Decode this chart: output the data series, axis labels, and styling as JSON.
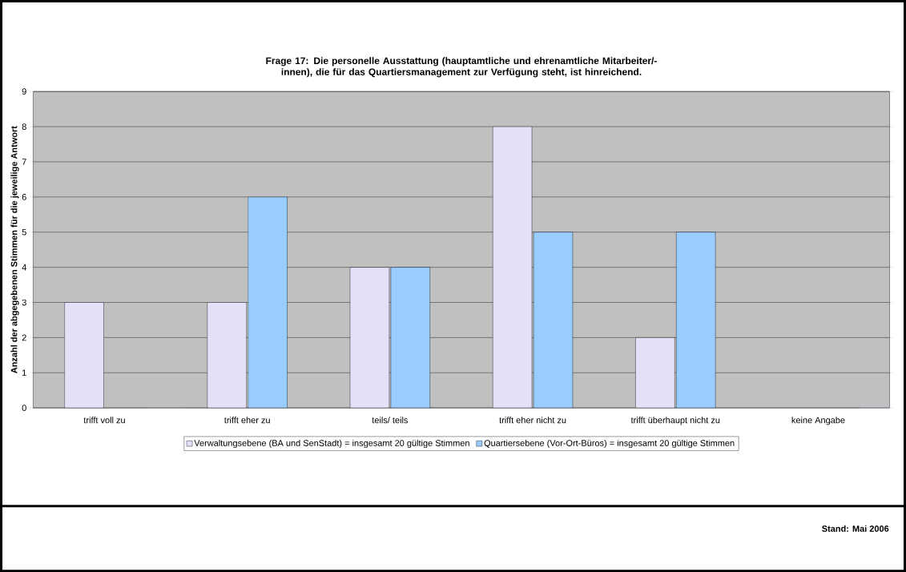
{
  "chart_data": {
    "type": "bar",
    "title": "Frage 17: Die personelle Ausstattung (hauptamtliche und ehrenamtliche Mitarbeiter/-innen), die für das Quartiersmanagement zur Verfügung steht, ist hinreichend.",
    "ylabel": "Anzahl der abgegebenen Stimmen für die jeweilige Antwort",
    "categories": [
      "trifft voll zu",
      "trifft eher zu",
      "teils/ teils",
      "trifft eher nicht zu",
      "trifft überhaupt nicht zu",
      "keine Angabe"
    ],
    "series": [
      {
        "name": "Verwaltungsebene (BA und SenStadt) = insgesamt 20 gültige Stimmen",
        "color": "#e4e0f8",
        "values": [
          3,
          3,
          4,
          8,
          2,
          0
        ]
      },
      {
        "name": "Quartiersebene (Vor-Ort-Büros) = insgesamt 20 gültige Stimmen",
        "color": "#99ccff",
        "values": [
          0,
          6,
          4,
          5,
          5,
          0
        ]
      }
    ],
    "ylim": [
      0,
      9
    ],
    "yticks": [
      0,
      1,
      2,
      3,
      4,
      5,
      6,
      7,
      8,
      9
    ],
    "grid": "y",
    "legend": "bottom",
    "annotations": [
      "Stand: Mai 2006"
    ]
  }
}
